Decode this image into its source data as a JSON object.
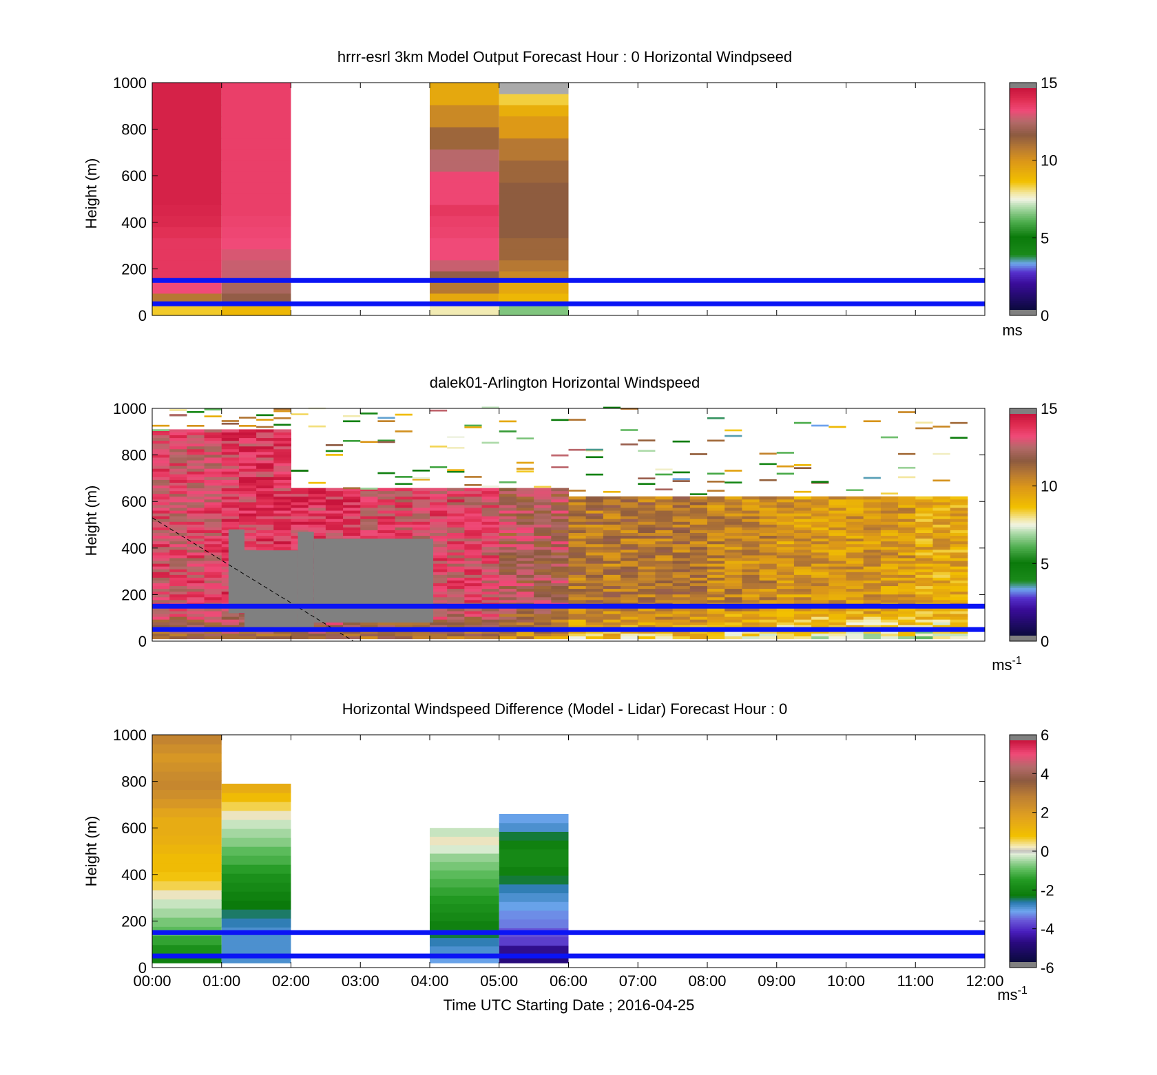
{
  "xticks": [
    "00:00",
    "01:00",
    "02:00",
    "03:00",
    "04:00",
    "05:00",
    "06:00",
    "07:00",
    "08:00",
    "09:00",
    "10:00",
    "11:00",
    "12:00"
  ],
  "xlabel": "Time UTC  Starting Date ; 2016-04-25",
  "colors": {
    "reference_line": "#0a14f5",
    "missing_gray": "#808080"
  },
  "chart_data": [
    {
      "type": "heatmap",
      "title": "hrrr-esrl 3km Model Output   Forecast Hour : 0 Horizontal Windpseed",
      "ylabel": "Height (m)",
      "ylim": [
        0,
        1000
      ],
      "yticks": [
        "0",
        "200",
        "400",
        "600",
        "800",
        "1000"
      ],
      "xlim_hours": [
        0,
        12
      ],
      "colorbar": {
        "range": [
          0,
          15
        ],
        "ticks": [
          "0",
          "5",
          "10",
          "15"
        ],
        "unit": "ms"
      },
      "reference_lines_m": [
        150,
        50
      ],
      "columns": [
        {
          "t0": 0,
          "t1": 1,
          "top": 1000,
          "values": [
            8.5,
            11,
            13.5,
            14,
            14,
            14,
            14,
            14.2,
            14.4,
            14.5,
            14.6,
            14.6,
            14.6,
            14.6,
            14.6,
            14.6,
            14.6,
            14.6,
            14.6,
            14.6,
            14.6
          ]
        },
        {
          "t0": 1,
          "t1": 2,
          "top": 1000,
          "values": [
            9,
            12,
            12.5,
            13,
            13,
            13.2,
            13.5,
            13.6,
            13.7,
            13.8,
            13.8,
            13.8,
            13.8,
            13.8,
            13.8,
            13.8,
            13.8,
            13.8,
            13.8,
            13.8,
            13.8
          ]
        },
        {
          "t0": 4,
          "t1": 5,
          "top": 1000,
          "values": [
            7.8,
            9.5,
            11,
            12,
            13,
            13.5,
            13.5,
            13.7,
            13.8,
            14,
            13.6,
            13.6,
            13.6,
            12.8,
            12.8,
            11.5,
            11.5,
            10.5,
            10.5,
            9.5,
            9.5
          ]
        },
        {
          "t0": 5,
          "t1": 6,
          "top": 1000,
          "values": [
            6.5,
            9,
            9.5,
            10.5,
            11,
            11.5,
            11.5,
            11.8,
            11.8,
            11.8,
            11.8,
            11.8,
            11.5,
            11.5,
            11,
            11,
            10,
            10,
            9.3,
            8.4,
            "missing"
          ]
        }
      ]
    },
    {
      "type": "heatmap",
      "title": "dalek01-Arlington  Horizontal Windspeed",
      "ylabel": "Height (m)",
      "ylim": [
        0,
        1000
      ],
      "yticks": [
        "0",
        "200",
        "400",
        "600",
        "800",
        "1000"
      ],
      "xlim_hours": [
        0,
        12
      ],
      "colorbar": {
        "range": [
          0,
          15
        ],
        "ticks": [
          "0",
          "5",
          "10",
          "15"
        ],
        "unit": "ms",
        "unit_sup": "-1"
      },
      "reference_lines_m": [
        150,
        50
      ],
      "approx_speed_by_hour": [
        {
          "hour": 0.5,
          "speed": 13.5
        },
        {
          "hour": 1.5,
          "speed": 14
        },
        {
          "hour": 2.5,
          "speed": 14
        },
        {
          "hour": 3.5,
          "speed": 13.5
        },
        {
          "hour": 4.5,
          "speed": 13.5
        },
        {
          "hour": 5.5,
          "speed": 12.5
        },
        {
          "hour": 6.5,
          "speed": 11
        },
        {
          "hour": 7.5,
          "speed": 11
        },
        {
          "hour": 8.5,
          "speed": 10.5
        },
        {
          "hour": 9.5,
          "speed": 10
        },
        {
          "hour": 10.5,
          "speed": 10
        },
        {
          "hour": 11.5,
          "speed": 9.5
        }
      ],
      "missing_regions": [
        {
          "t0": 1.1,
          "t1": 1.33,
          "bottom": 120,
          "top": 480
        },
        {
          "t0": 1.33,
          "t1": 2.1,
          "bottom": 60,
          "top": 390
        },
        {
          "t0": 2.1,
          "t1": 2.33,
          "bottom": 60,
          "top": 470
        },
        {
          "t0": 2.33,
          "t1": 4.05,
          "bottom": 80,
          "top": 440
        }
      ],
      "cloud_top_line_m": {
        "t_start": 0,
        "h_start": 530,
        "t_end": 2.9,
        "h_end": 0
      }
    },
    {
      "type": "heatmap",
      "title": "Horizontal Windspeed Difference (Model - Lidar) Forecast Hour : 0",
      "ylabel": "Height (m)",
      "ylim": [
        0,
        1000
      ],
      "yticks": [
        "0",
        "200",
        "400",
        "600",
        "800",
        "1000"
      ],
      "xlim_hours": [
        0,
        12
      ],
      "colorbar": {
        "range": [
          -6,
          6
        ],
        "ticks": [
          "-6",
          "-4",
          "-2",
          "0",
          "2",
          "4",
          "6"
        ],
        "unit": "ms",
        "unit_sup": "-1"
      },
      "reference_lines_m": [
        150,
        50
      ],
      "columns": [
        {
          "t0": 0,
          "t1": 1,
          "bottom": 20,
          "top": 1000,
          "values": [
            -2.2,
            -1.8,
            -1.4,
            -1.0,
            -0.8,
            -0.5,
            -0.3,
            0.2,
            0.6,
            0.8,
            1.0,
            1.0,
            1.2,
            1.4,
            1.5,
            1.5,
            1.8,
            2.2,
            2.5,
            2.7,
            2.6,
            2.4,
            2.2,
            2.5,
            2.8
          ]
        },
        {
          "t0": 1,
          "t1": 2,
          "bottom": 20,
          "top": 790,
          "values": [
            -3.0,
            -3.0,
            -3.0,
            -3.0,
            -2.8,
            -2.6,
            -2.4,
            -2.2,
            -2.0,
            -1.8,
            -1.5,
            -1.2,
            -1.0,
            -0.7,
            -0.5,
            -0.3,
            0.2,
            0.6,
            1.0,
            1.5
          ]
        },
        {
          "t0": 4,
          "t1": 5,
          "bottom": 20,
          "top": 600,
          "values": [
            -3.2,
            -3.0,
            -2.8,
            -2.5,
            -2.2,
            -2.0,
            -1.8,
            -1.6,
            -1.4,
            -1.2,
            -1.0,
            -0.8,
            -0.6,
            -0.2,
            0.2,
            -0.3
          ]
        },
        {
          "t0": 5,
          "t1": 6,
          "bottom": 20,
          "top": 660,
          "values": [
            -5.0,
            -4.8,
            -4.0,
            -3.8,
            -3.5,
            -3.4,
            -3.2,
            -3.0,
            -2.8,
            -2.5,
            -2.2,
            -2.0,
            -2.0,
            -2.2,
            -2.5,
            -3.0,
            -3.2
          ]
        }
      ]
    }
  ]
}
